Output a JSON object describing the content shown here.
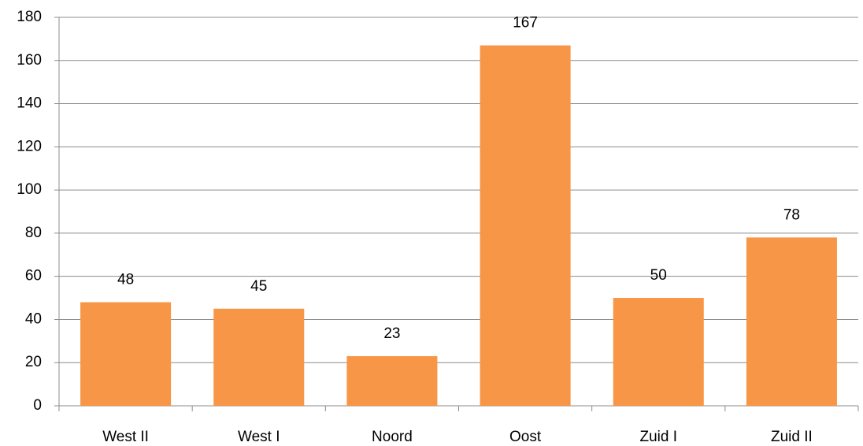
{
  "chart_data": {
    "type": "bar",
    "categories": [
      "West II",
      "West I",
      "Noord",
      "Oost",
      "Zuid I",
      "Zuid II"
    ],
    "values": [
      48,
      45,
      23,
      167,
      50,
      78
    ],
    "color": "#f79646",
    "ylim": [
      0,
      180
    ],
    "yticks": [
      0,
      20,
      40,
      60,
      80,
      100,
      120,
      140,
      160,
      180
    ],
    "grid": true
  }
}
